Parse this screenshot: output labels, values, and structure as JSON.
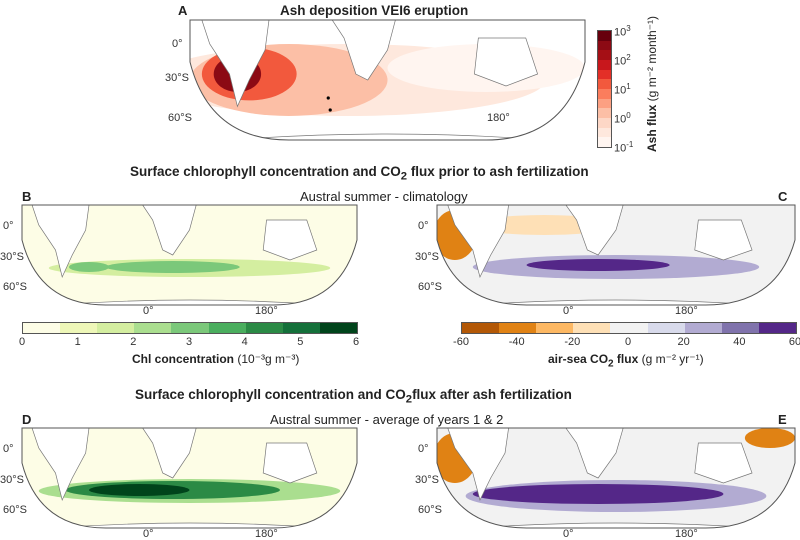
{
  "panelA": {
    "label": "A",
    "title": "Ash deposition VEI6 eruption",
    "lat_labels": [
      "0°",
      "30°S",
      "60°S"
    ],
    "lon_label": "180°",
    "colorbar": {
      "ticks": [
        "10",
        "10",
        "10",
        "10",
        "10"
      ],
      "exps": [
        "3",
        "2",
        "1",
        "0",
        "-1"
      ],
      "label_bold": "Ash flux",
      "label_units": "(g m⁻² month⁻¹)",
      "colors": [
        "#67000d",
        "#8c0a14",
        "#a50f15",
        "#c8171c",
        "#e32f27",
        "#f2593d",
        "#fb7d5d",
        "#fca082",
        "#fcbfa6",
        "#fdd7c6",
        "#fee8dd",
        "#fff5f0"
      ]
    }
  },
  "section1": {
    "title_pre": "Surface chlorophyll concentration and CO",
    "title_sub": "2",
    "title_post": " flux prior to ash fertilization",
    "subtitle": "Austral summer - climatology"
  },
  "section2": {
    "title_pre": "Surface chlorophyll concentration and CO",
    "title_sub": "2",
    "title_post": "flux after ash fertilization",
    "subtitle": "Austral summer - average of years 1 & 2"
  },
  "panels": {
    "B": "B",
    "C": "C",
    "D": "D",
    "E": "E"
  },
  "lat_labels": [
    "0°",
    "30°S",
    "60°S"
  ],
  "lon_labels": [
    "0°",
    "180°"
  ],
  "chl_colorbar": {
    "ticks": [
      "0",
      "1",
      "2",
      "3",
      "4",
      "5",
      "6"
    ],
    "label_bold": "Chl concentration",
    "label_units": "(10⁻³g m⁻³)",
    "colors": [
      "#fdfde6",
      "#eef7b8",
      "#d4eea0",
      "#aade8f",
      "#7bc87a",
      "#4aae5e",
      "#2b8a45",
      "#14703a",
      "#00441b"
    ]
  },
  "co2_colorbar": {
    "ticks": [
      "-60",
      "-40",
      "-20",
      "0",
      "20",
      "40",
      "60"
    ],
    "label_pre": "air-sea CO",
    "label_sub": "2",
    "label_post": " flux",
    "label_units": "(g m⁻² yr⁻¹)",
    "colors": [
      "#b35806",
      "#e08214",
      "#fdb863",
      "#fee0b6",
      "#f2f2f2",
      "#d8daeb",
      "#b2abd2",
      "#8073ac",
      "#542788"
    ]
  }
}
